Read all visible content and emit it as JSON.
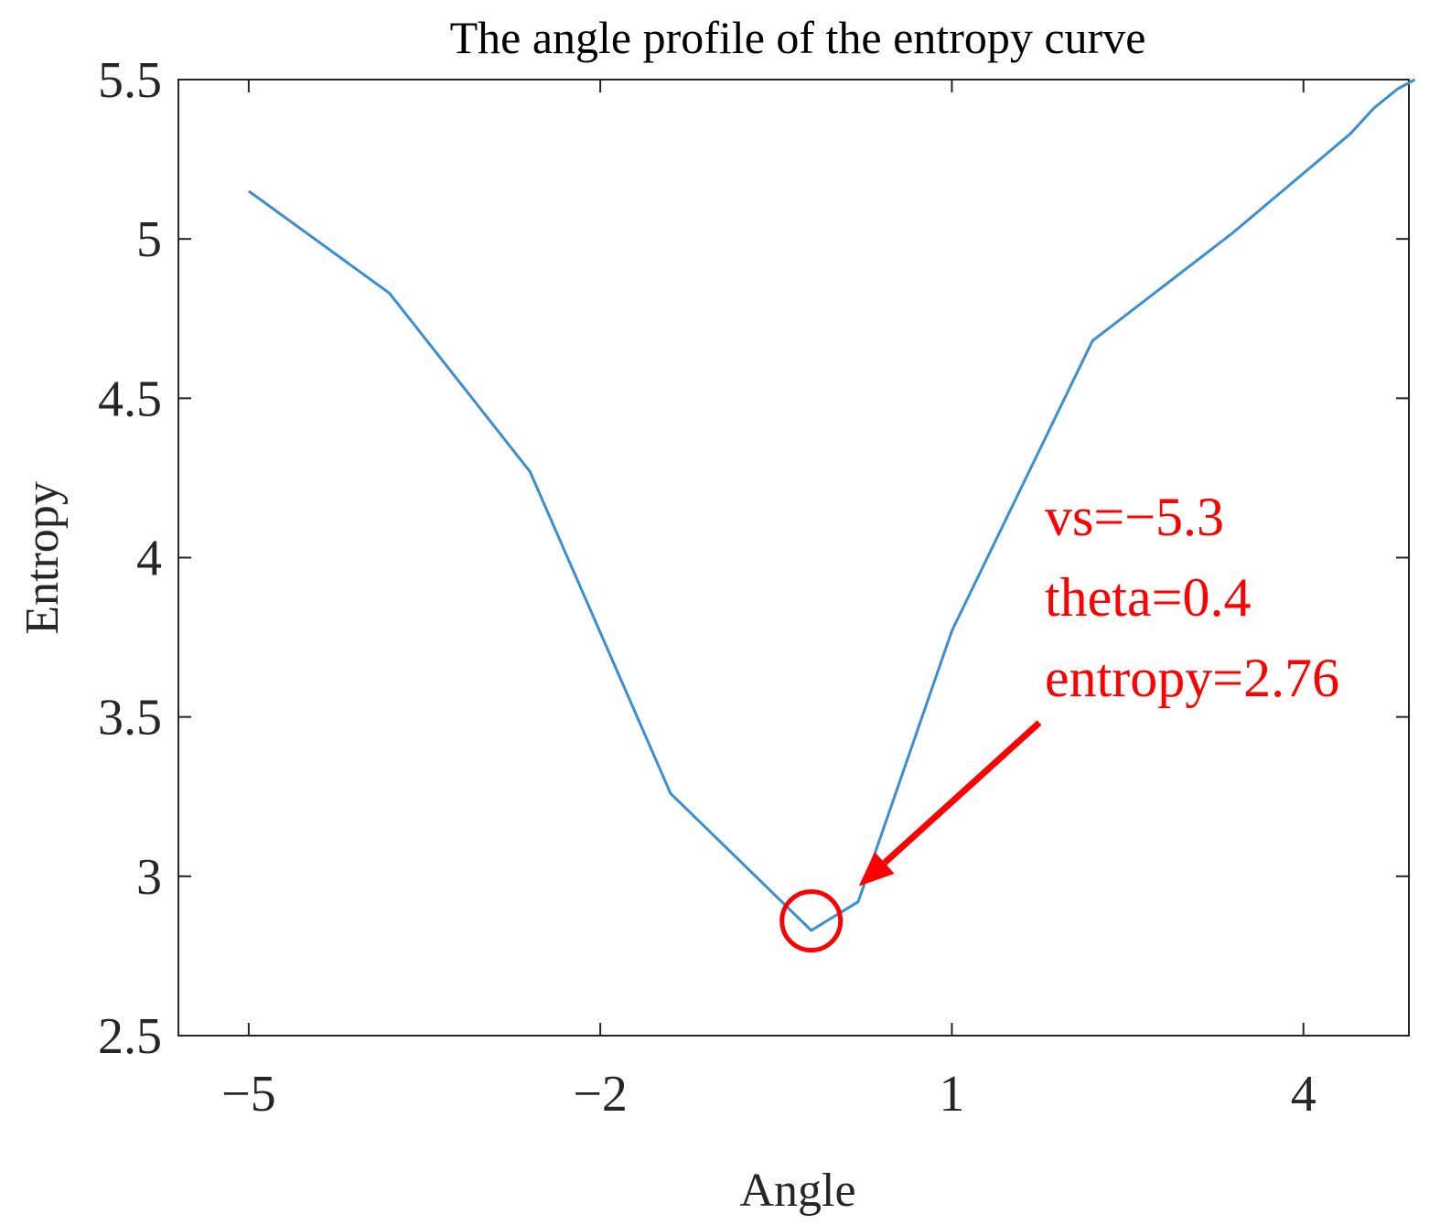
{
  "chart_data": {
    "type": "line",
    "title": "The angle profile of the entropy curve",
    "xlabel": "Angle",
    "ylabel": "Entropy",
    "xlim": [
      -5.6,
      4.9
    ],
    "ylim": [
      2.5,
      5.5
    ],
    "xticks": [
      -5,
      -2,
      1,
      4
    ],
    "xtick_labels": [
      "−5",
      "−2",
      "1",
      "4"
    ],
    "yticks": [
      2.5,
      3,
      3.5,
      4,
      4.5,
      5,
      5.5
    ],
    "ytick_labels": [
      "2.5",
      "3",
      "3.5",
      "4",
      "4.5",
      "5",
      "5.5"
    ],
    "grid": false,
    "series": [
      {
        "color": "#3b8fd1",
        "x": [
          -5.0,
          -3.8,
          -2.6,
          -1.4,
          -0.2,
          0.2,
          1.0,
          2.2,
          3.4,
          4.4,
          4.6,
          4.8,
          4.95
        ],
        "y": [
          5.15,
          4.83,
          4.27,
          3.26,
          2.83,
          2.92,
          3.77,
          4.68,
          5.02,
          5.33,
          5.41,
          5.47,
          5.5
        ]
      }
    ],
    "annotation": {
      "color": "#ff0000",
      "lines": [
        "vs=−5.3",
        "theta=0.4",
        "entropy=2.76"
      ],
      "marker_x": -0.2,
      "marker_y": 2.86
    }
  }
}
